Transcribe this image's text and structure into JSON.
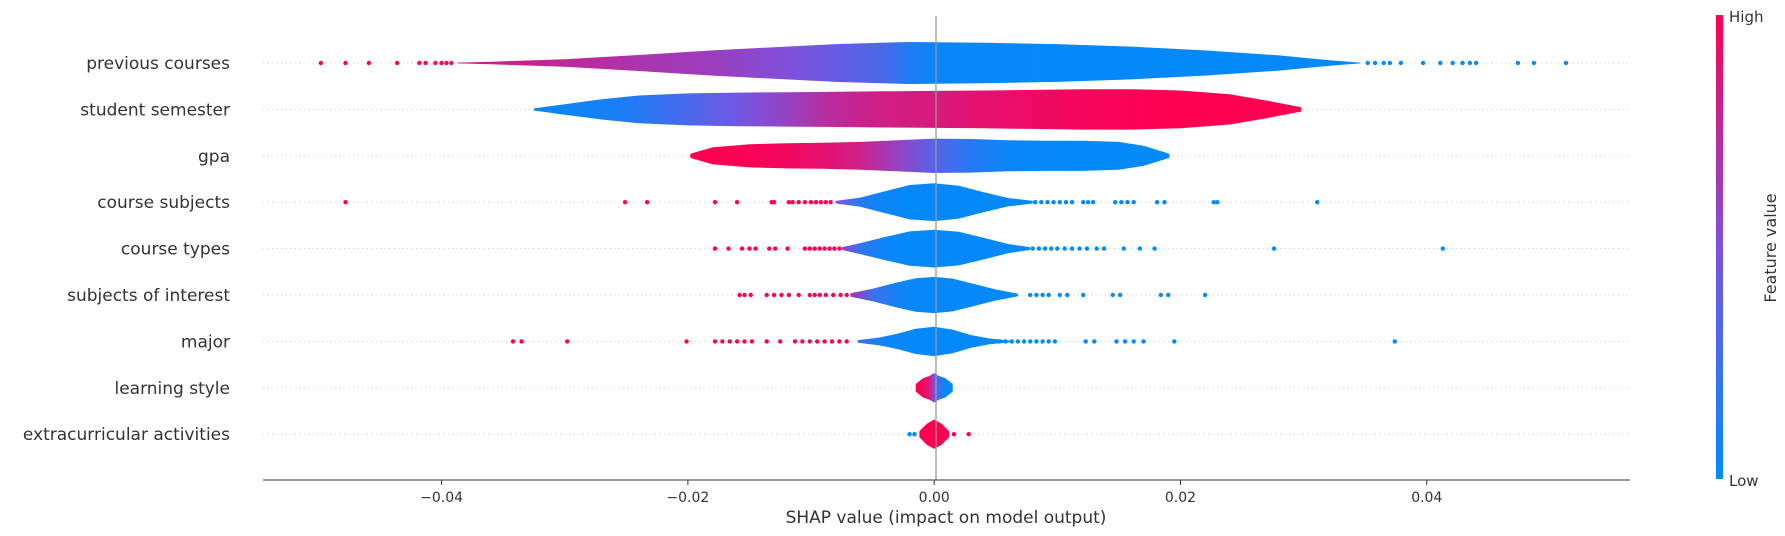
{
  "chart_data": {
    "type": "violin",
    "xlabel": "SHAP value (impact on model output)",
    "xlim": [
      -0.0545,
      0.0565
    ],
    "x_ticks": [
      {
        "value": -0.04,
        "label": "−0.04"
      },
      {
        "value": -0.02,
        "label": "−0.02"
      },
      {
        "value": 0.0,
        "label": "0.00"
      },
      {
        "value": 0.02,
        "label": "0.02"
      },
      {
        "value": 0.04,
        "label": "0.04"
      }
    ],
    "features": [
      {
        "name": "previous courses",
        "violin": {
          "x": [
            -0.0387,
            -0.036,
            -0.03,
            -0.024,
            -0.018,
            -0.012,
            -0.008,
            -0.004,
            -0.002,
            0.0,
            0.004,
            0.01,
            0.016,
            0.022,
            0.028,
            0.032,
            0.0346
          ],
          "w": [
            0.02,
            0.06,
            0.18,
            0.38,
            0.6,
            0.78,
            0.9,
            0.97,
            1.0,
            0.99,
            0.96,
            0.9,
            0.78,
            0.6,
            0.36,
            0.14,
            0.02
          ],
          "c": [
            0.85,
            0.82,
            0.75,
            0.68,
            0.62,
            0.52,
            0.42,
            0.3,
            0.12,
            0.05,
            0.03,
            0.02,
            0.02,
            0.02,
            0.02,
            0.02,
            0.02
          ]
        },
        "dots": [
          {
            "x": -0.0498,
            "c": 1.0
          },
          {
            "x": -0.0478,
            "c": 1.0
          },
          {
            "x": -0.0459,
            "c": 1.0
          },
          {
            "x": -0.0436,
            "c": 1.0
          },
          {
            "x": -0.0418,
            "c": 1.0
          },
          {
            "x": -0.0413,
            "c": 1.0
          },
          {
            "x": -0.0405,
            "c": 0.98
          },
          {
            "x": -0.04,
            "c": 0.98
          },
          {
            "x": -0.0396,
            "c": 0.95
          },
          {
            "x": -0.0392,
            "c": 0.95
          },
          {
            "x": 0.0352,
            "c": 0.0
          },
          {
            "x": 0.0358,
            "c": 0.0
          },
          {
            "x": 0.0365,
            "c": 0.0
          },
          {
            "x": 0.037,
            "c": 0.0
          },
          {
            "x": 0.0379,
            "c": 0.0
          },
          {
            "x": 0.0397,
            "c": 0.0
          },
          {
            "x": 0.0411,
            "c": 0.0
          },
          {
            "x": 0.0421,
            "c": 0.0
          },
          {
            "x": 0.0429,
            "c": 0.0
          },
          {
            "x": 0.0435,
            "c": 0.0
          },
          {
            "x": 0.044,
            "c": 0.0
          },
          {
            "x": 0.0474,
            "c": 0.0
          },
          {
            "x": 0.0487,
            "c": 0.0
          },
          {
            "x": 0.0513,
            "c": 0.0
          }
        ]
      },
      {
        "name": "student semester",
        "violin": {
          "x": [
            -0.0325,
            -0.03,
            -0.027,
            -0.024,
            -0.02,
            -0.016,
            -0.012,
            -0.008,
            -0.004,
            0.0,
            0.004,
            0.008,
            0.012,
            0.016,
            0.02,
            0.024,
            0.027,
            0.0298
          ],
          "w": [
            0.05,
            0.25,
            0.48,
            0.66,
            0.76,
            0.8,
            0.82,
            0.84,
            0.86,
            0.88,
            0.9,
            0.93,
            0.96,
            0.96,
            0.9,
            0.72,
            0.42,
            0.1
          ],
          "c": [
            0.05,
            0.05,
            0.08,
            0.15,
            0.3,
            0.45,
            0.6,
            0.75,
            0.82,
            0.85,
            0.9,
            0.93,
            0.96,
            0.98,
            1.0,
            1.0,
            1.0,
            1.0
          ]
        },
        "dots": []
      },
      {
        "name": "gpa",
        "violin": {
          "x": [
            -0.0198,
            -0.018,
            -0.015,
            -0.012,
            -0.009,
            -0.006,
            -0.003,
            0.0,
            0.003,
            0.006,
            0.009,
            0.012,
            0.015,
            0.017,
            0.0191
          ],
          "w": [
            0.1,
            0.4,
            0.55,
            0.6,
            0.62,
            0.66,
            0.74,
            0.82,
            0.8,
            0.74,
            0.72,
            0.72,
            0.66,
            0.48,
            0.1
          ],
          "c": [
            1.0,
            1.0,
            0.98,
            0.95,
            0.9,
            0.8,
            0.6,
            0.35,
            0.15,
            0.05,
            0.02,
            0.02,
            0.02,
            0.02,
            0.02
          ]
        },
        "dots": []
      },
      {
        "name": "course subjects",
        "violin": {
          "x": [
            -0.008,
            -0.006,
            -0.004,
            -0.002,
            0.0,
            0.002,
            0.004,
            0.006,
            0.008
          ],
          "w": [
            0.06,
            0.22,
            0.52,
            0.82,
            0.9,
            0.78,
            0.48,
            0.2,
            0.06
          ],
          "c": [
            0.5,
            0.15,
            0.05,
            0.02,
            0.02,
            0.02,
            0.02,
            0.02,
            0.02
          ]
        },
        "dots": [
          {
            "x": -0.0478,
            "c": 1.0
          },
          {
            "x": -0.0251,
            "c": 1.0
          },
          {
            "x": -0.0233,
            "c": 1.0
          },
          {
            "x": -0.0178,
            "c": 1.0
          },
          {
            "x": -0.016,
            "c": 1.0
          },
          {
            "x": -0.0132,
            "c": 1.0
          },
          {
            "x": -0.013,
            "c": 1.0
          },
          {
            "x": -0.0118,
            "c": 1.0
          },
          {
            "x": -0.0115,
            "c": 1.0
          },
          {
            "x": -0.011,
            "c": 1.0
          },
          {
            "x": -0.0105,
            "c": 1.0
          },
          {
            "x": -0.01,
            "c": 1.0
          },
          {
            "x": -0.0096,
            "c": 1.0
          },
          {
            "x": -0.0092,
            "c": 1.0
          },
          {
            "x": -0.0088,
            "c": 1.0
          },
          {
            "x": -0.0084,
            "c": 0.95
          },
          {
            "x": 0.0082,
            "c": 0.0
          },
          {
            "x": 0.0087,
            "c": 0.0
          },
          {
            "x": 0.0092,
            "c": 0.0
          },
          {
            "x": 0.0097,
            "c": 0.0
          },
          {
            "x": 0.0102,
            "c": 0.0
          },
          {
            "x": 0.0107,
            "c": 0.0
          },
          {
            "x": 0.0112,
            "c": 0.0
          },
          {
            "x": 0.0121,
            "c": 0.0
          },
          {
            "x": 0.0125,
            "c": 0.0
          },
          {
            "x": 0.0129,
            "c": 0.0
          },
          {
            "x": 0.0147,
            "c": 0.0
          },
          {
            "x": 0.0152,
            "c": 0.0
          },
          {
            "x": 0.0157,
            "c": 0.0
          },
          {
            "x": 0.0162,
            "c": 0.0
          },
          {
            "x": 0.0181,
            "c": 0.0
          },
          {
            "x": 0.0187,
            "c": 0.0
          },
          {
            "x": 0.0227,
            "c": 0.0
          },
          {
            "x": 0.023,
            "c": 0.0
          },
          {
            "x": 0.0311,
            "c": 0.0
          }
        ]
      },
      {
        "name": "course types",
        "violin": {
          "x": [
            -0.0075,
            -0.006,
            -0.004,
            -0.002,
            0.0,
            0.002,
            0.004,
            0.006,
            0.0078
          ],
          "w": [
            0.06,
            0.26,
            0.55,
            0.82,
            0.9,
            0.8,
            0.52,
            0.22,
            0.06
          ],
          "c": [
            0.6,
            0.2,
            0.05,
            0.02,
            0.02,
            0.02,
            0.02,
            0.02,
            0.02
          ]
        },
        "dots": [
          {
            "x": -0.0178,
            "c": 1.0
          },
          {
            "x": -0.0167,
            "c": 1.0
          },
          {
            "x": -0.0156,
            "c": 1.0
          },
          {
            "x": -0.015,
            "c": 1.0
          },
          {
            "x": -0.0145,
            "c": 1.0
          },
          {
            "x": -0.0134,
            "c": 1.0
          },
          {
            "x": -0.0129,
            "c": 1.0
          },
          {
            "x": -0.0119,
            "c": 1.0
          },
          {
            "x": -0.0105,
            "c": 1.0
          },
          {
            "x": -0.0101,
            "c": 1.0
          },
          {
            "x": -0.0097,
            "c": 1.0
          },
          {
            "x": -0.0093,
            "c": 1.0
          },
          {
            "x": -0.0089,
            "c": 1.0
          },
          {
            "x": -0.0085,
            "c": 1.0
          },
          {
            "x": -0.0081,
            "c": 1.0
          },
          {
            "x": -0.0077,
            "c": 0.95
          },
          {
            "x": 0.008,
            "c": 0.0
          },
          {
            "x": 0.0085,
            "c": 0.0
          },
          {
            "x": 0.009,
            "c": 0.0
          },
          {
            "x": 0.0095,
            "c": 0.0
          },
          {
            "x": 0.01,
            "c": 0.0
          },
          {
            "x": 0.0106,
            "c": 0.0
          },
          {
            "x": 0.0112,
            "c": 0.0
          },
          {
            "x": 0.0118,
            "c": 0.0
          },
          {
            "x": 0.0124,
            "c": 0.0
          },
          {
            "x": 0.0132,
            "c": 0.0
          },
          {
            "x": 0.0138,
            "c": 0.0
          },
          {
            "x": 0.0154,
            "c": 0.0
          },
          {
            "x": 0.0167,
            "c": 0.0
          },
          {
            "x": 0.0179,
            "c": 0.0
          },
          {
            "x": 0.0276,
            "c": 0.0
          },
          {
            "x": 0.0413,
            "c": 0.0
          }
        ]
      },
      {
        "name": "subjects of interest",
        "violin": {
          "x": [
            -0.0068,
            -0.005,
            -0.003,
            -0.0015,
            0.0,
            0.0015,
            0.003,
            0.005,
            0.0068
          ],
          "w": [
            0.08,
            0.3,
            0.6,
            0.8,
            0.86,
            0.78,
            0.56,
            0.26,
            0.06
          ],
          "c": [
            0.7,
            0.25,
            0.08,
            0.03,
            0.02,
            0.02,
            0.02,
            0.02,
            0.02
          ]
        },
        "dots": [
          {
            "x": -0.0158,
            "c": 1.0
          },
          {
            "x": -0.0154,
            "c": 1.0
          },
          {
            "x": -0.0149,
            "c": 1.0
          },
          {
            "x": -0.0136,
            "c": 1.0
          },
          {
            "x": -0.013,
            "c": 1.0
          },
          {
            "x": -0.0124,
            "c": 1.0
          },
          {
            "x": -0.0118,
            "c": 1.0
          },
          {
            "x": -0.011,
            "c": 1.0
          },
          {
            "x": -0.0101,
            "c": 1.0
          },
          {
            "x": -0.0097,
            "c": 1.0
          },
          {
            "x": -0.0093,
            "c": 1.0
          },
          {
            "x": -0.0088,
            "c": 1.0
          },
          {
            "x": -0.0082,
            "c": 1.0
          },
          {
            "x": -0.0076,
            "c": 1.0
          },
          {
            "x": -0.0071,
            "c": 0.95
          },
          {
            "x": 0.0078,
            "c": 0.0
          },
          {
            "x": 0.0083,
            "c": 0.0
          },
          {
            "x": 0.0088,
            "c": 0.0
          },
          {
            "x": 0.0093,
            "c": 0.0
          },
          {
            "x": 0.0102,
            "c": 0.0
          },
          {
            "x": 0.0108,
            "c": 0.0
          },
          {
            "x": 0.0121,
            "c": 0.0
          },
          {
            "x": 0.0145,
            "c": 0.0
          },
          {
            "x": 0.0151,
            "c": 0.0
          },
          {
            "x": 0.0184,
            "c": 0.0
          },
          {
            "x": 0.019,
            "c": 0.0
          },
          {
            "x": 0.022,
            "c": 0.0
          }
        ]
      },
      {
        "name": "major",
        "violin": {
          "x": [
            -0.0062,
            -0.0045,
            -0.003,
            -0.0015,
            0.0,
            0.0015,
            0.003,
            0.0045,
            0.0062
          ],
          "w": [
            0.06,
            0.18,
            0.36,
            0.6,
            0.7,
            0.56,
            0.3,
            0.14,
            0.04
          ],
          "c": [
            0.3,
            0.08,
            0.03,
            0.02,
            0.02,
            0.02,
            0.02,
            0.02,
            0.02
          ]
        },
        "dots": [
          {
            "x": -0.0342,
            "c": 1.0
          },
          {
            "x": -0.0335,
            "c": 1.0
          },
          {
            "x": -0.0298,
            "c": 1.0
          },
          {
            "x": -0.0201,
            "c": 1.0
          },
          {
            "x": -0.0178,
            "c": 1.0
          },
          {
            "x": -0.0172,
            "c": 1.0
          },
          {
            "x": -0.0166,
            "c": 1.0
          },
          {
            "x": -0.016,
            "c": 1.0
          },
          {
            "x": -0.0154,
            "c": 1.0
          },
          {
            "x": -0.0148,
            "c": 1.0
          },
          {
            "x": -0.0136,
            "c": 1.0
          },
          {
            "x": -0.0125,
            "c": 1.0
          },
          {
            "x": -0.0113,
            "c": 1.0
          },
          {
            "x": -0.0107,
            "c": 1.0
          },
          {
            "x": -0.0101,
            "c": 1.0
          },
          {
            "x": -0.0095,
            "c": 1.0
          },
          {
            "x": -0.0089,
            "c": 1.0
          },
          {
            "x": -0.0083,
            "c": 1.0
          },
          {
            "x": -0.0077,
            "c": 1.0
          },
          {
            "x": -0.0071,
            "c": 1.0
          },
          {
            "x": 0.0053,
            "c": 0.0
          },
          {
            "x": 0.0058,
            "c": 0.0
          },
          {
            "x": 0.0063,
            "c": 0.0
          },
          {
            "x": 0.0068,
            "c": 0.0
          },
          {
            "x": 0.0073,
            "c": 0.0
          },
          {
            "x": 0.0078,
            "c": 0.0
          },
          {
            "x": 0.0083,
            "c": 0.0
          },
          {
            "x": 0.0088,
            "c": 0.0
          },
          {
            "x": 0.0093,
            "c": 0.0
          },
          {
            "x": 0.0098,
            "c": 0.0
          },
          {
            "x": 0.0123,
            "c": 0.0
          },
          {
            "x": 0.013,
            "c": 0.0
          },
          {
            "x": 0.0148,
            "c": 0.0
          },
          {
            "x": 0.0155,
            "c": 0.0
          },
          {
            "x": 0.0162,
            "c": 0.0
          },
          {
            "x": 0.017,
            "c": 0.0
          },
          {
            "x": 0.0195,
            "c": 0.0
          },
          {
            "x": 0.0374,
            "c": 0.0
          }
        ]
      },
      {
        "name": "learning style",
        "violin": {
          "x": [
            -0.0015,
            -0.0009,
            -0.0004,
            0.0,
            0.0004,
            0.0009,
            0.0015
          ],
          "w": [
            0.18,
            0.46,
            0.56,
            0.7,
            0.56,
            0.46,
            0.18
          ],
          "c": [
            1.0,
            0.95,
            0.85,
            0.5,
            0.2,
            0.03,
            0.02
          ]
        },
        "dots": []
      },
      {
        "name": "extracurricular activities",
        "violin": {
          "x": [
            -0.0012,
            -0.0006,
            0.0,
            0.0006,
            0.0012
          ],
          "w": [
            0.15,
            0.5,
            0.7,
            0.5,
            0.15
          ],
          "c": [
            1.0,
            1.0,
            1.0,
            1.0,
            1.0
          ]
        },
        "dots": [
          {
            "x": -0.002,
            "c": 0.0
          },
          {
            "x": -0.0016,
            "c": 0.0
          },
          {
            "x": 0.0016,
            "c": 1.0
          },
          {
            "x": 0.0028,
            "c": 1.0
          }
        ]
      }
    ],
    "colorbar": {
      "label": "Feature value",
      "high_label": "High",
      "low_label": "Low",
      "low_color": "#008bfb",
      "mid_color": "#7c52e0",
      "high_color": "#ff0051"
    },
    "zero_line_color": "#999999",
    "grid_color": "#cccccc"
  }
}
